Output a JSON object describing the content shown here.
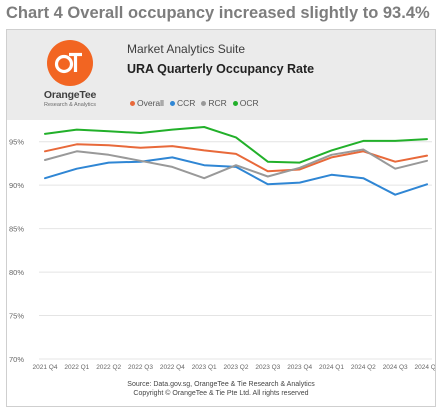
{
  "heading": "Chart 4 Overall occupancy increased slightly to 93.4%",
  "logo": {
    "name": "OrangeTee",
    "tagline": "Research & Analytics"
  },
  "suite": "Market Analytics Suite",
  "source_line1": "Source: Data.gov.sg, OrangeTee & Tie Research & Analytics",
  "source_line2": "Copyright © OrangeTee & Tie Pte Ltd. All rights reserved",
  "colors": {
    "brand": "#f26522",
    "overall": "#e8693a",
    "ccr": "#2f86d4",
    "rcr": "#999999",
    "ocr": "#22b02a"
  },
  "chart_data": {
    "type": "line",
    "title": "URA Quarterly Occupancy Rate",
    "categories": [
      "2021 Q4",
      "2022 Q1",
      "2022 Q2",
      "2022 Q3",
      "2022 Q4",
      "2023 Q1",
      "2023 Q2",
      "2023 Q3",
      "2023 Q4",
      "2024 Q1",
      "2024 Q2",
      "2024 Q3",
      "2024 Q4"
    ],
    "yticks": [
      "70%",
      "75%",
      "80%",
      "85%",
      "90%",
      "95%"
    ],
    "ylim": [
      70,
      97.5
    ],
    "series": [
      {
        "name": "Overall",
        "color": "#e8693a",
        "values": [
          93.9,
          94.7,
          94.6,
          94.3,
          94.5,
          94.0,
          93.6,
          91.6,
          91.8,
          93.2,
          93.9,
          92.7,
          93.4
        ]
      },
      {
        "name": "CCR",
        "color": "#2f86d4",
        "values": [
          90.8,
          91.9,
          92.6,
          92.7,
          93.2,
          92.3,
          92.1,
          90.1,
          90.3,
          91.2,
          90.8,
          88.9,
          90.1
        ]
      },
      {
        "name": "RCR",
        "color": "#999999",
        "values": [
          92.9,
          93.9,
          93.5,
          92.8,
          92.1,
          90.8,
          92.3,
          91.0,
          92.0,
          93.5,
          94.1,
          91.9,
          92.8
        ]
      },
      {
        "name": "OCR",
        "color": "#22b02a",
        "values": [
          95.9,
          96.4,
          96.2,
          96.0,
          96.4,
          96.7,
          95.5,
          92.7,
          92.6,
          94.0,
          95.1,
          95.1,
          95.3
        ]
      }
    ],
    "legend": "top",
    "grid": true
  }
}
